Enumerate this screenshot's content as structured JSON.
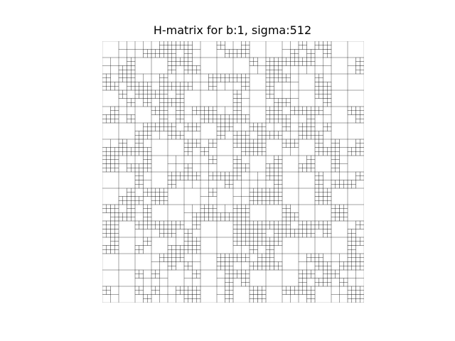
{
  "figure": {
    "title": "H-matrix for b:1, sigma:512",
    "background_color": "#ffffff",
    "line_color": "#000000"
  },
  "chart_data": {
    "type": "heatmap",
    "title": "H-matrix for b:1, sigma:512",
    "description_of_structure": "hierarchical block partition of a square matrix; each block is subdivided into 2x2 children down to small leaf blocks",
    "b": 1,
    "sigma": 512,
    "axes_visible": false,
    "grid": false
  }
}
